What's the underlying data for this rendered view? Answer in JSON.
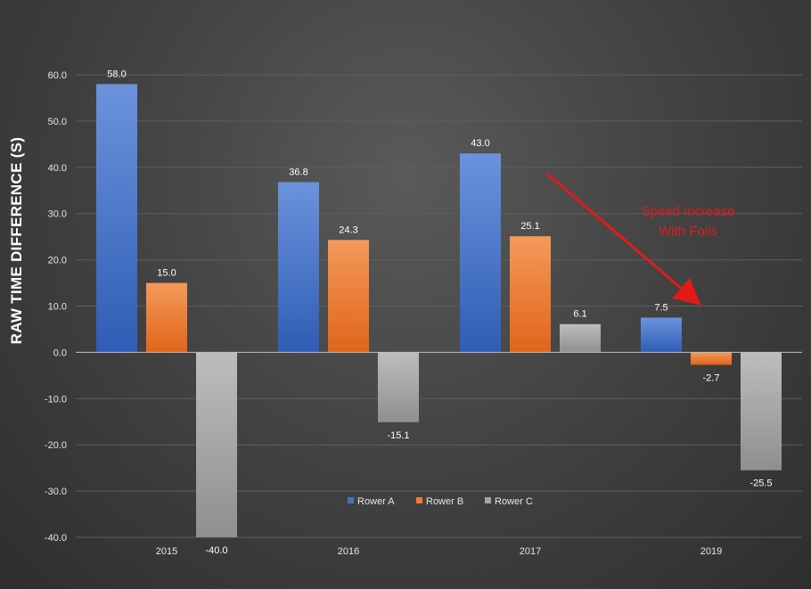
{
  "chart_data": {
    "type": "bar",
    "title": "",
    "xlabel": "",
    "ylabel": "RAW TIME DIFFERENCE (S)",
    "categories": [
      "2015",
      "2016",
      "2017",
      "2019"
    ],
    "series": [
      {
        "name": "Rower A",
        "color": "#4472c4",
        "values": [
          58.0,
          36.8,
          43.0,
          7.5
        ]
      },
      {
        "name": "Rower B",
        "color": "#ed7d31",
        "values": [
          15.0,
          24.3,
          25.1,
          -2.7
        ]
      },
      {
        "name": "Rower C",
        "color": "#a5a5a5",
        "values": [
          -40.0,
          -15.1,
          6.1,
          -25.5
        ]
      }
    ],
    "ylim": [
      -40,
      60
    ],
    "yticks": [
      -40,
      -30,
      -20,
      -10,
      0,
      10,
      20,
      30,
      40,
      50,
      60
    ],
    "grid": true,
    "legend_position": "bottom-center",
    "annotation": {
      "lines": [
        "Speed Increase",
        "With Foils"
      ],
      "color": "#e31a1a"
    }
  }
}
